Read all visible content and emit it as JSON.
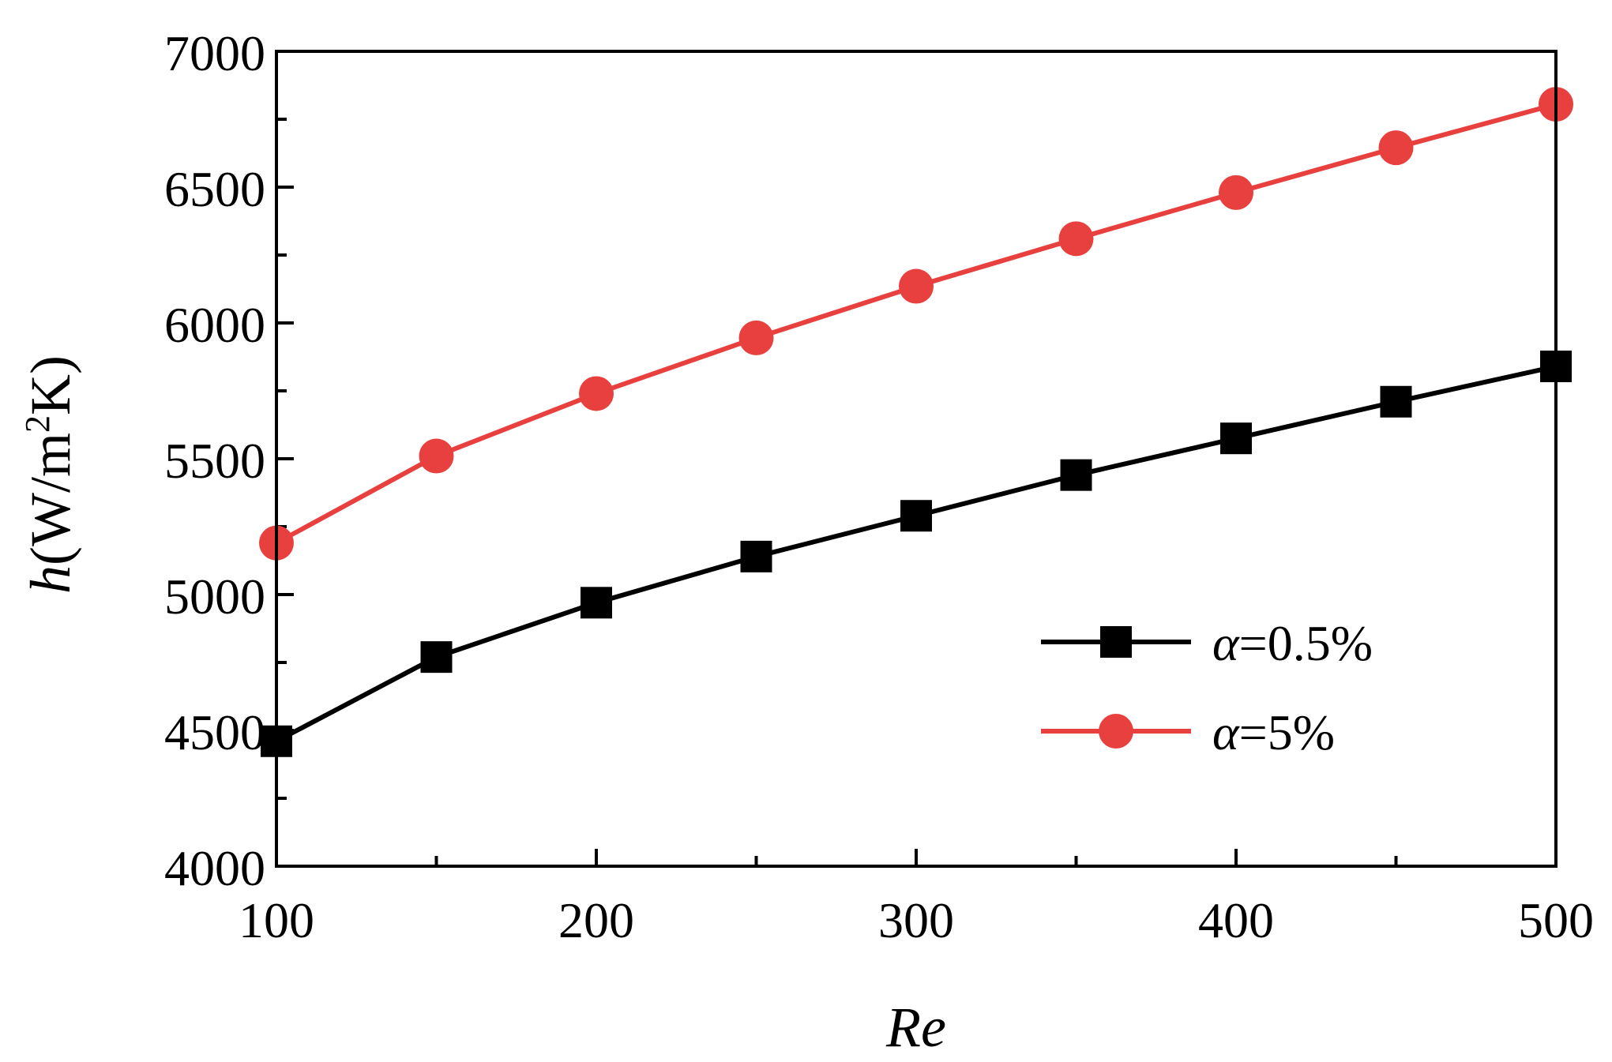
{
  "chart_data": {
    "type": "line",
    "title": "",
    "xlabel": "Re",
    "ylabel_parts": {
      "symbol": "h",
      "unit_open": "(W/m",
      "superscript": "2",
      "unit_close": "K)"
    },
    "xlim": [
      100,
      500
    ],
    "ylim": [
      4000,
      7000
    ],
    "x_ticks": [
      100,
      200,
      300,
      400,
      500
    ],
    "x_minor_ticks": [
      150,
      250,
      350,
      450
    ],
    "y_ticks": [
      4000,
      4500,
      5000,
      5500,
      6000,
      6500,
      7000
    ],
    "y_minor_ticks": [
      4250,
      4750,
      5250,
      5750,
      6250,
      6750
    ],
    "x": [
      100,
      150,
      200,
      250,
      300,
      350,
      400,
      450,
      500
    ],
    "series": [
      {
        "name_symbol": "α",
        "name_value": "=0.5%",
        "marker": "square",
        "color": "#000000",
        "values": [
          4460,
          4770,
          4970,
          5140,
          5290,
          5440,
          5575,
          5710,
          5840
        ]
      },
      {
        "name_symbol": "α",
        "name_value": "=5%",
        "marker": "circle",
        "color": "#e8403f",
        "values": [
          5190,
          5510,
          5740,
          5945,
          6135,
          6310,
          6480,
          6645,
          6805
        ]
      }
    ],
    "legend_position": "lower-right",
    "grid": false
  }
}
